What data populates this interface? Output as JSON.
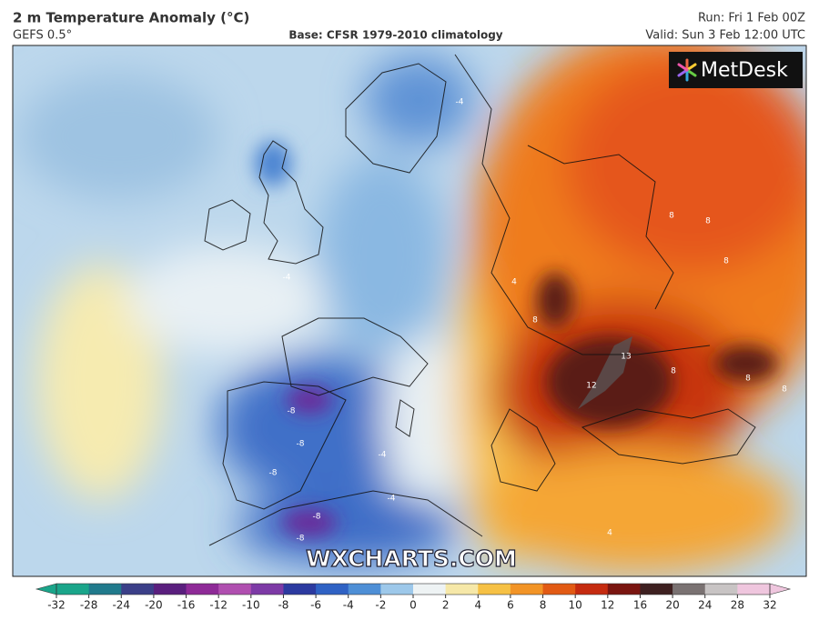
{
  "header": {
    "title": "2 m Temperature Anomaly (°C)",
    "model": "GEFS 0.5°",
    "base": "Base: CFSR 1979-2010 climatology",
    "run": "Run: Fri 1 Feb 00Z",
    "valid": "Valid: Sun 3 Feb 12:00 UTC"
  },
  "logo": "MetDesk",
  "watermark": "WXCHARTS.COM",
  "contour_labels": [
    -4,
    -4,
    -4,
    -8,
    -8,
    -8,
    -8,
    -8,
    -4,
    8,
    8,
    8,
    8,
    12,
    13,
    8,
    8,
    8,
    4,
    4
  ],
  "colorbar": {
    "ticks": [
      -32,
      -28,
      -24,
      -20,
      -16,
      -12,
      -10,
      -8,
      -6,
      -4,
      -2,
      0,
      2,
      4,
      6,
      8,
      10,
      12,
      16,
      20,
      24,
      28,
      32
    ],
    "colors": [
      "#1aa58a",
      "#207a8c",
      "#3b3f88",
      "#5a1f7e",
      "#8e2a97",
      "#b04fb0",
      "#7d3aa6",
      "#2c3aa0",
      "#2f62c4",
      "#4e8fd6",
      "#9dc8ea",
      "#eef3f4",
      "#f6e8a8",
      "#f6c145",
      "#f29426",
      "#e25a14",
      "#c52b10",
      "#7a1510",
      "#3e2020",
      "#7a7272",
      "#c8c4c4",
      "#efc6de"
    ]
  }
}
